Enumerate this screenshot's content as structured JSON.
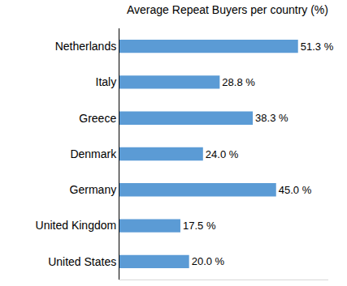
{
  "chart_data": {
    "type": "bar",
    "orientation": "horizontal",
    "title": "Average Repeat Buyers per country (%)",
    "categories": [
      "Netherlands",
      "Italy",
      "Greece",
      "Denmark",
      "Germany",
      "United Kingdom",
      "United States"
    ],
    "values": [
      51.3,
      28.8,
      38.3,
      24.0,
      45.0,
      17.5,
      20.0
    ],
    "value_labels": [
      "51.3 %",
      "28.8 %",
      "38.3 %",
      "24.0 %",
      "45.0 %",
      "17.5 %",
      "20.0 %"
    ],
    "color": "#5b9bd5",
    "xlim": [
      0,
      60
    ],
    "xticks": [],
    "data_labels": true,
    "tick_labels": "y",
    "grid": false
  }
}
